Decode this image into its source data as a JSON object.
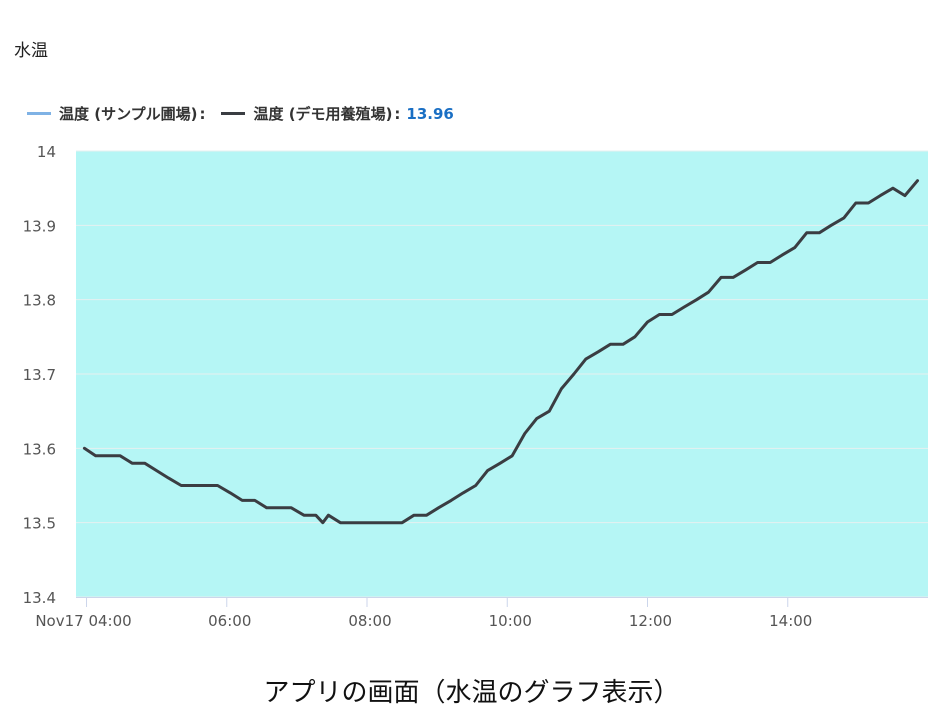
{
  "title": "水温",
  "legend": {
    "series1_label": "温度 (サンプル圃場)",
    "series2_label": "温度 (デモ用養殖場)",
    "series2_value": "13.96"
  },
  "caption": "アプリの画面（水温のグラフ表示）",
  "colors": {
    "plot_background": "#b5f6f5",
    "series1": "#7fb2e5",
    "series2": "#3a3d42",
    "gridline": "#e6f0f0",
    "value_highlight": "#1a6fc4"
  },
  "chart_data": {
    "type": "line",
    "title": "水温",
    "x_tick_labels": [
      "Nov17 04:00",
      "06:00",
      "08:00",
      "10:00",
      "12:00",
      "14:00"
    ],
    "x_ticks_hours": [
      4,
      6,
      8,
      10,
      12,
      14
    ],
    "xlim_hours": [
      3.85,
      16.0
    ],
    "ylim": [
      13.4,
      14.0
    ],
    "y_ticks": [
      "13.4",
      "13.5",
      "13.6",
      "13.7",
      "13.8",
      "13.9",
      "14"
    ],
    "grid": true,
    "legend_position": "top-left",
    "series": [
      {
        "name": "温度 (デモ用養殖場)",
        "x_hours": [
          3.97,
          4.13,
          4.3,
          4.48,
          4.65,
          4.83,
          5.0,
          5.17,
          5.35,
          5.52,
          5.7,
          5.87,
          6.05,
          6.22,
          6.4,
          6.57,
          6.75,
          6.92,
          7.1,
          7.27,
          7.37,
          7.45,
          7.62,
          7.8,
          7.97,
          8.15,
          8.32,
          8.5,
          8.67,
          8.85,
          9.02,
          9.2,
          9.37,
          9.55,
          9.72,
          9.9,
          10.07,
          10.25,
          10.42,
          10.6,
          10.77,
          10.95,
          11.12,
          11.3,
          11.47,
          11.65,
          11.82,
          12.0,
          12.17,
          12.35,
          12.52,
          12.7,
          12.87,
          13.05,
          13.22,
          13.4,
          13.57,
          13.75,
          13.92,
          14.1,
          14.27,
          14.45,
          14.62,
          14.8,
          14.97,
          15.15,
          15.32,
          15.5,
          15.67,
          15.85
        ],
        "values": [
          13.6,
          13.59,
          13.59,
          13.59,
          13.58,
          13.58,
          13.57,
          13.56,
          13.55,
          13.55,
          13.55,
          13.55,
          13.54,
          13.53,
          13.53,
          13.52,
          13.52,
          13.52,
          13.51,
          13.51,
          13.5,
          13.51,
          13.5,
          13.5,
          13.5,
          13.5,
          13.5,
          13.5,
          13.51,
          13.51,
          13.52,
          13.53,
          13.54,
          13.55,
          13.57,
          13.58,
          13.59,
          13.62,
          13.64,
          13.65,
          13.68,
          13.7,
          13.72,
          13.73,
          13.74,
          13.74,
          13.75,
          13.77,
          13.78,
          13.78,
          13.79,
          13.8,
          13.81,
          13.83,
          13.83,
          13.84,
          13.85,
          13.85,
          13.86,
          13.87,
          13.89,
          13.89,
          13.9,
          13.91,
          13.93,
          13.93,
          13.94,
          13.95,
          13.94,
          13.96
        ]
      }
    ]
  }
}
